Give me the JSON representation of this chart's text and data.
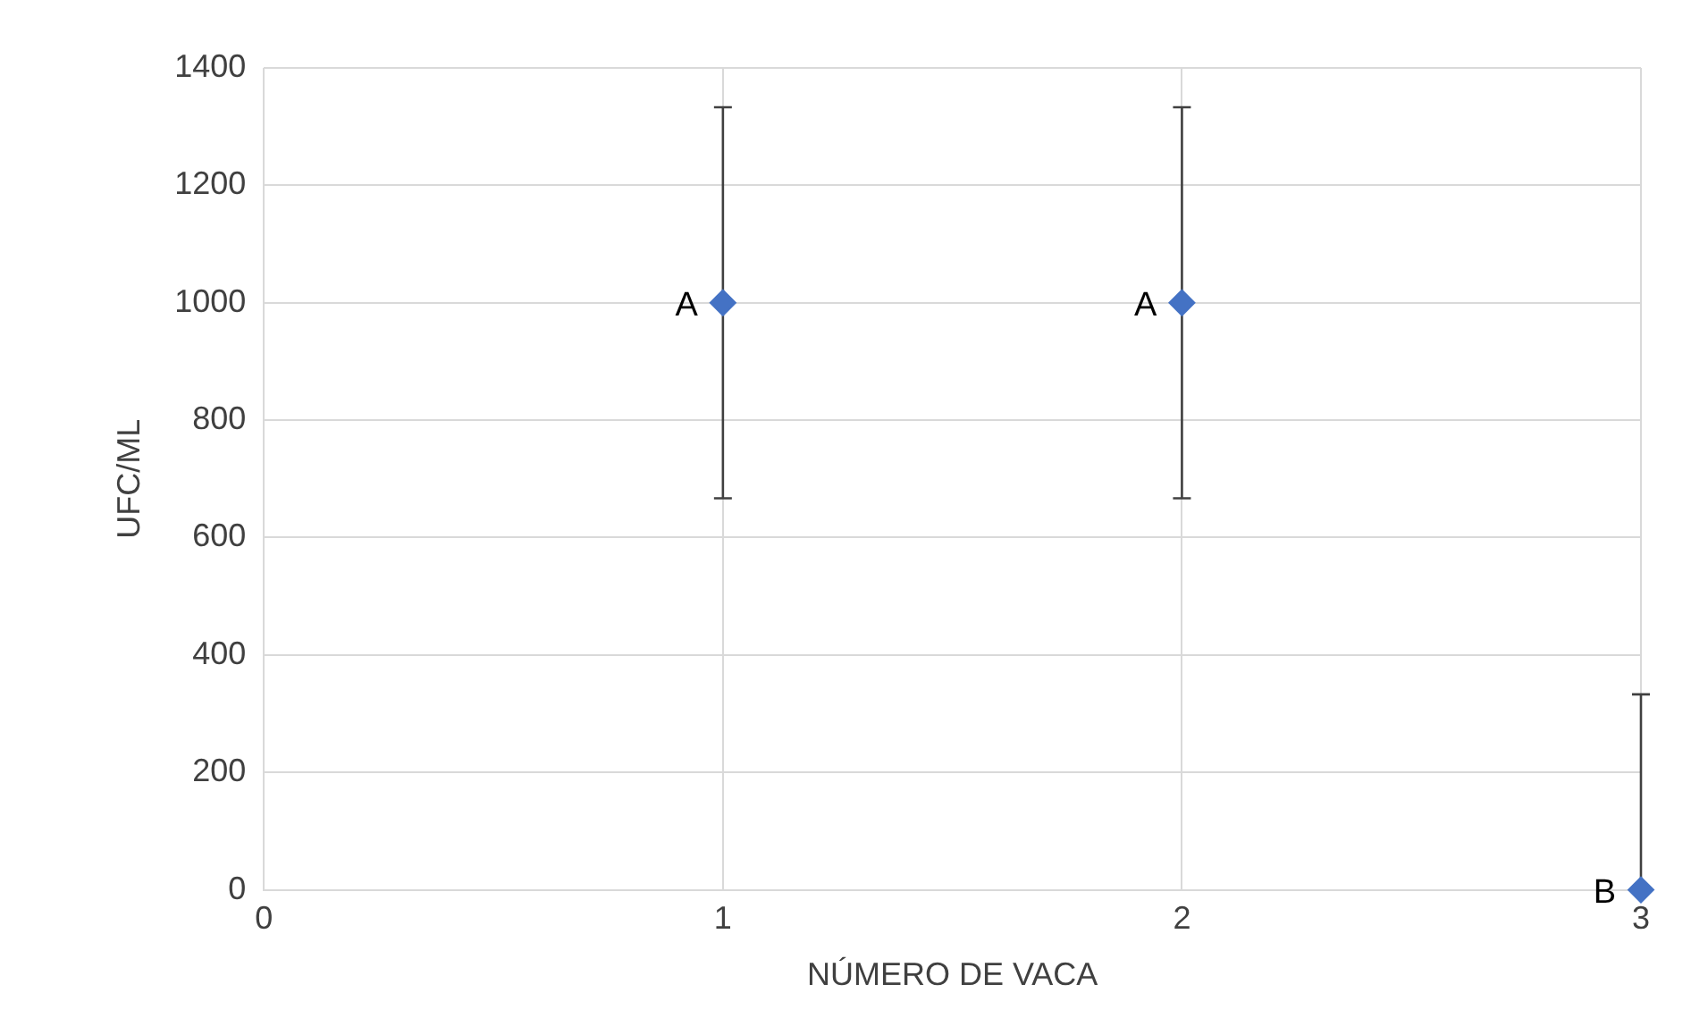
{
  "chart_data": {
    "type": "scatter",
    "xlabel": "NÚMERO DE VACA",
    "ylabel": "UFC/ML",
    "x": [
      1,
      2,
      3
    ],
    "series": [
      {
        "color": "#4472c4",
        "values": [
          1000,
          1000,
          0
        ],
        "errors": [
          [
            667,
            1333
          ],
          [
            667,
            1333
          ],
          [
            0,
            333
          ]
        ]
      }
    ],
    "xlim": [
      0,
      3
    ],
    "xticks": [
      0,
      1,
      2,
      3
    ],
    "ylim": [
      0,
      1400
    ],
    "yticks": [
      0,
      200,
      400,
      600,
      800,
      1000,
      1200,
      1400
    ],
    "grid": true,
    "legend": false,
    "marker": "diamond",
    "annotations": [
      {
        "text": "A",
        "x": 1,
        "y": 1000
      },
      {
        "text": "A",
        "x": 2,
        "y": 1000
      },
      {
        "text": "B",
        "x": 3,
        "y": 0
      }
    ]
  }
}
